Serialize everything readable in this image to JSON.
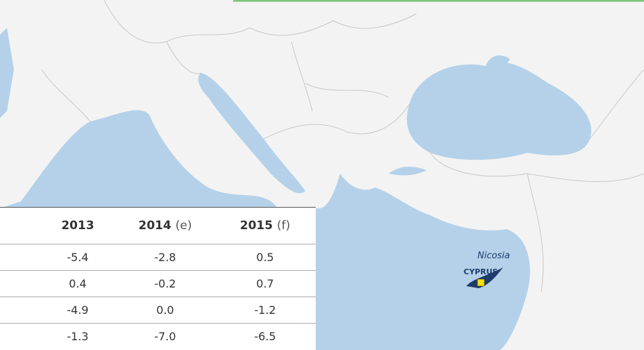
{
  "map": {
    "labels": {
      "city": "Nicosia",
      "country": "CYPRUS"
    }
  },
  "table": {
    "header": [
      {
        "year": "2013",
        "note": ""
      },
      {
        "year": "2014",
        "note": "(e)"
      },
      {
        "year": "2015",
        "note": "(f)"
      }
    ],
    "rows": [
      [
        "-5.4",
        "-2.8",
        "0.5"
      ],
      [
        "0.4",
        "-0.2",
        "0.7"
      ],
      [
        "-4.9",
        "0.0",
        "-1.2"
      ],
      [
        "-1.3",
        "-7.0",
        "-6.5"
      ]
    ]
  }
}
